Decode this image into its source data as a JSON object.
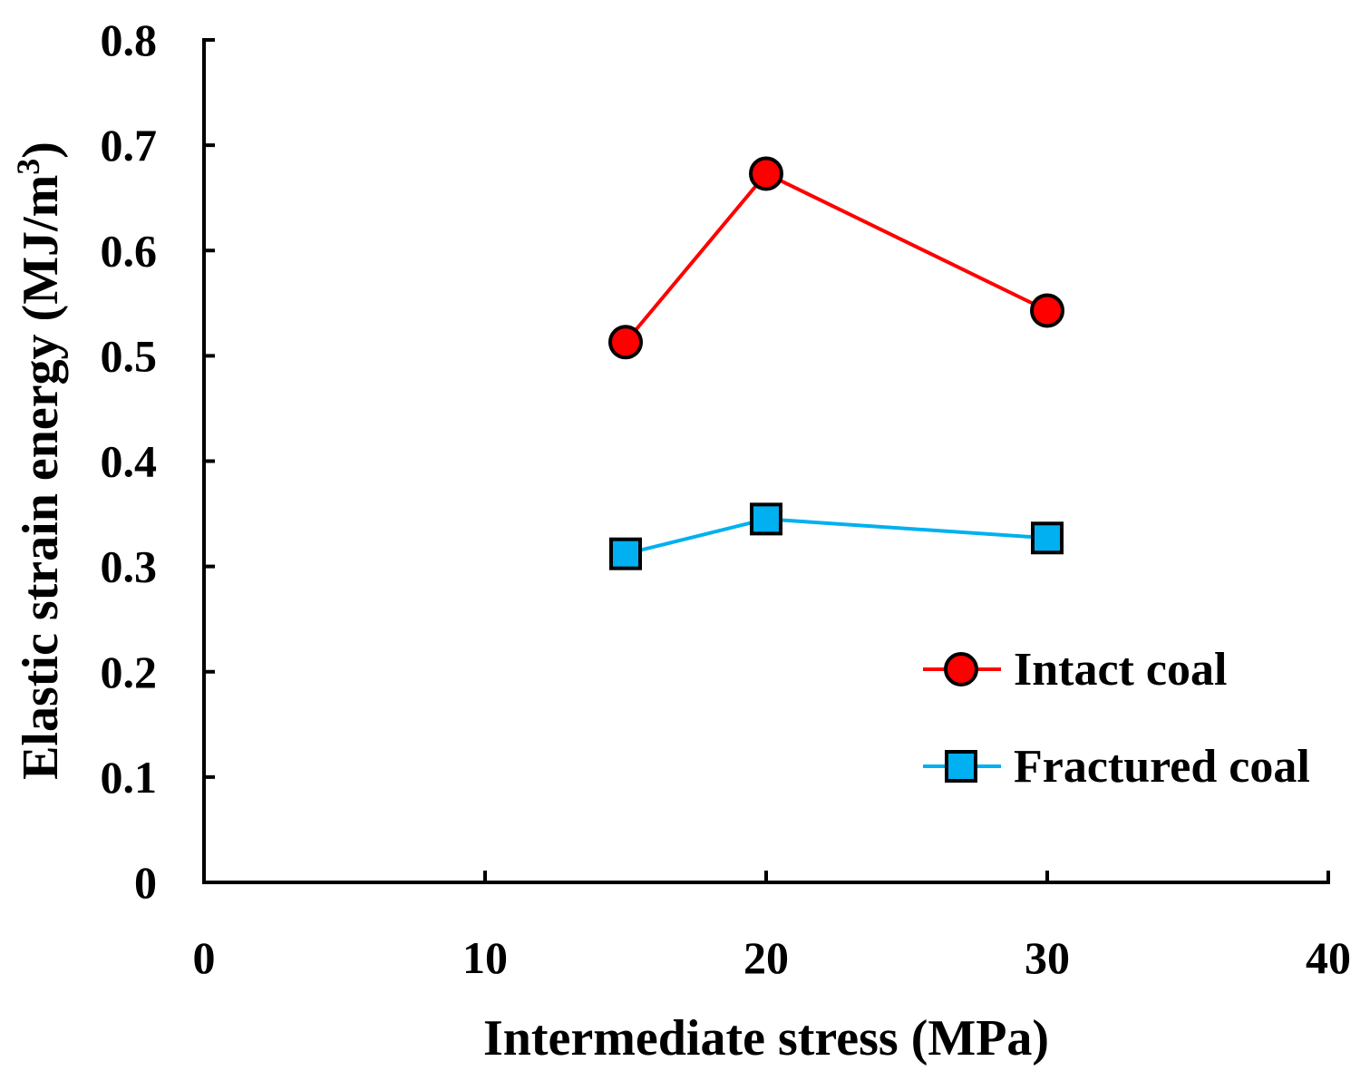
{
  "chart_data": {
    "type": "line",
    "xlabel": "Intermediate stress (MPa)",
    "ylabel_main": "Elastic strain energy (MJ/m",
    "ylabel_sup": "3",
    "ylabel_close": ")",
    "xlim": [
      0,
      40
    ],
    "ylim": [
      0,
      0.8
    ],
    "xticks": [
      0,
      10,
      20,
      30,
      40
    ],
    "xtick_labels": [
      "0",
      "10",
      "20",
      "30",
      "40"
    ],
    "yticks": [
      0,
      0.1,
      0.2,
      0.3,
      0.4,
      0.5,
      0.6,
      0.7,
      0.8
    ],
    "ytick_labels": [
      "0",
      "0.1",
      "0.2",
      "0.3",
      "0.4",
      "0.5",
      "0.6",
      "0.7",
      "0.8"
    ],
    "grid": false,
    "legend_position": "bottom-right",
    "series": [
      {
        "name": "Intact coal",
        "marker": "circle",
        "line_color": "#ff0000",
        "marker_color": "#ff0000",
        "x": [
          15,
          20,
          30
        ],
        "y": [
          0.513,
          0.673,
          0.543
        ]
      },
      {
        "name": "Fractured coal",
        "marker": "square",
        "line_color": "#00b0f0",
        "marker_color": "#00b0f0",
        "x": [
          15,
          20,
          30
        ],
        "y": [
          0.312,
          0.345,
          0.327
        ]
      }
    ]
  }
}
